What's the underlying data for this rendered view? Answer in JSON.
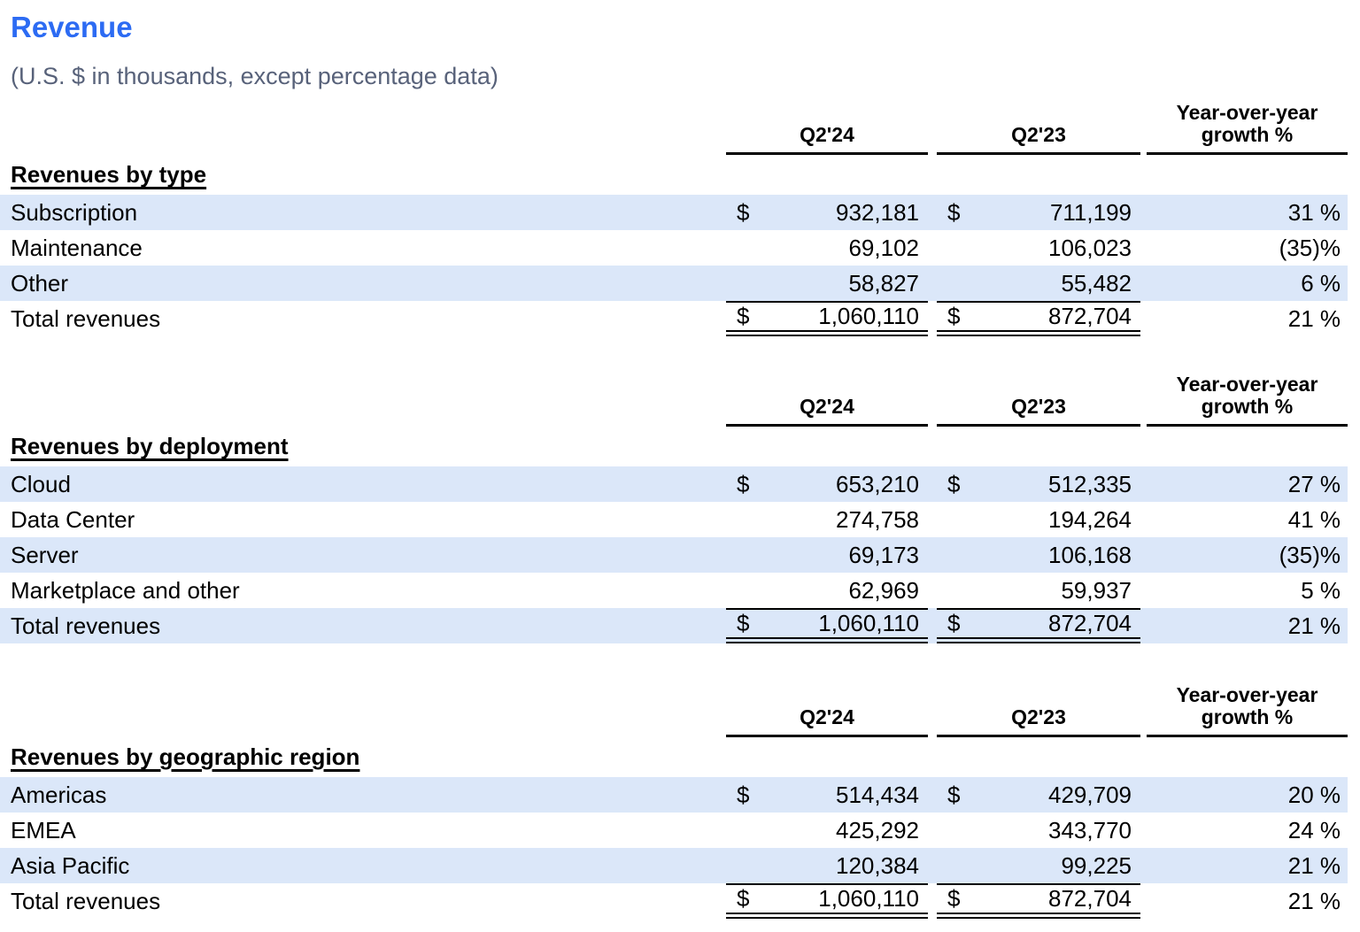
{
  "page": {
    "title": "Revenue",
    "subtitle": "(U.S. $ in thousands, except percentage data)"
  },
  "colors": {
    "title_blue": "#2c6bf3",
    "subtitle_gray": "#58627a",
    "row_shade": "#dbe7f9"
  },
  "columns": {
    "col1": "Q2'24",
    "col2": "Q2'23",
    "col3_line1": "Year-over-year",
    "col3_line2": "growth %"
  },
  "tables": [
    {
      "section": "Revenues by type",
      "rows": [
        {
          "label": "Subscription",
          "cur1": "$",
          "v1": "932,181",
          "cur2": "$",
          "v2": "711,199",
          "growth": "31 %",
          "shaded": true,
          "total": false
        },
        {
          "label": "Maintenance",
          "cur1": "",
          "v1": "69,102",
          "cur2": "",
          "v2": "106,023",
          "growth": "(35)%",
          "shaded": false,
          "total": false
        },
        {
          "label": "Other",
          "cur1": "",
          "v1": "58,827",
          "cur2": "",
          "v2": "55,482",
          "growth": "6 %",
          "shaded": true,
          "total": false
        },
        {
          "label": "Total revenues",
          "cur1": "$",
          "v1": "1,060,110",
          "cur2": "$",
          "v2": "872,704",
          "growth": "21 %",
          "shaded": false,
          "total": true
        }
      ]
    },
    {
      "section": "Revenues by deployment",
      "rows": [
        {
          "label": "Cloud",
          "cur1": "$",
          "v1": "653,210",
          "cur2": "$",
          "v2": "512,335",
          "growth": "27 %",
          "shaded": true,
          "total": false
        },
        {
          "label": "Data Center",
          "cur1": "",
          "v1": "274,758",
          "cur2": "",
          "v2": "194,264",
          "growth": "41 %",
          "shaded": false,
          "total": false
        },
        {
          "label": "Server",
          "cur1": "",
          "v1": "69,173",
          "cur2": "",
          "v2": "106,168",
          "growth": "(35)%",
          "shaded": true,
          "total": false
        },
        {
          "label": "Marketplace and other",
          "cur1": "",
          "v1": "62,969",
          "cur2": "",
          "v2": "59,937",
          "growth": "5 %",
          "shaded": false,
          "total": false
        },
        {
          "label": "Total revenues",
          "cur1": "$",
          "v1": "1,060,110",
          "cur2": "$",
          "v2": "872,704",
          "growth": "21 %",
          "shaded": true,
          "total": true
        }
      ]
    },
    {
      "section": "Revenues by geographic region",
      "rows": [
        {
          "label": "Americas",
          "cur1": "$",
          "v1": "514,434",
          "cur2": "$",
          "v2": "429,709",
          "growth": "20 %",
          "shaded": true,
          "total": false
        },
        {
          "label": "EMEA",
          "cur1": "",
          "v1": "425,292",
          "cur2": "",
          "v2": "343,770",
          "growth": "24 %",
          "shaded": false,
          "total": false
        },
        {
          "label": "Asia Pacific",
          "cur1": "",
          "v1": "120,384",
          "cur2": "",
          "v2": "99,225",
          "growth": "21 %",
          "shaded": true,
          "total": false
        },
        {
          "label": "Total revenues",
          "cur1": "$",
          "v1": "1,060,110",
          "cur2": "$",
          "v2": "872,704",
          "growth": "21 %",
          "shaded": false,
          "total": true
        }
      ]
    }
  ]
}
